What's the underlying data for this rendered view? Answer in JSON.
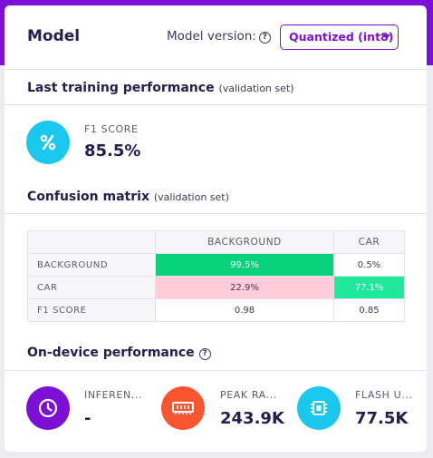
{
  "header": {
    "title": "Model",
    "version_label": "Model version:",
    "version_selected": "Quantized (int8)"
  },
  "training": {
    "title": "Last training performance",
    "subtitle": "(validation set)",
    "f1_label": "F1 SCORE",
    "f1_value": "85.5%"
  },
  "confusion": {
    "title": "Confusion matrix",
    "subtitle": "(validation set)",
    "columns": [
      "BACKGROUND",
      "CAR"
    ],
    "rows": [
      {
        "label": "BACKGROUND",
        "cells": [
          "99.5%",
          "0.5%"
        ]
      },
      {
        "label": "CAR",
        "cells": [
          "22.9%",
          "77.1%"
        ]
      },
      {
        "label": "F1 SCORE",
        "cells": [
          "0.98",
          "0.85"
        ]
      }
    ],
    "colors": {
      "high_correct": "#0ad27a",
      "correct": "#1ee89a",
      "misclassified": "#fecbdb"
    }
  },
  "ondevice": {
    "title": "On-device performance",
    "metrics": [
      {
        "label": "INFEREN...",
        "value": "-",
        "icon": "clock-icon",
        "color": "#7d0fd6"
      },
      {
        "label": "PEAK RA...",
        "value": "243.9K",
        "icon": "memory-icon",
        "color": "#fa5531"
      },
      {
        "label": "FLASH U...",
        "value": "77.5K",
        "icon": "chip-icon",
        "color": "#1ac8ee"
      }
    ]
  },
  "colors": {
    "accent": "#7d0fd6",
    "percent_icon_bg": "#1ac8ee",
    "text_dark": "#261d4f"
  }
}
